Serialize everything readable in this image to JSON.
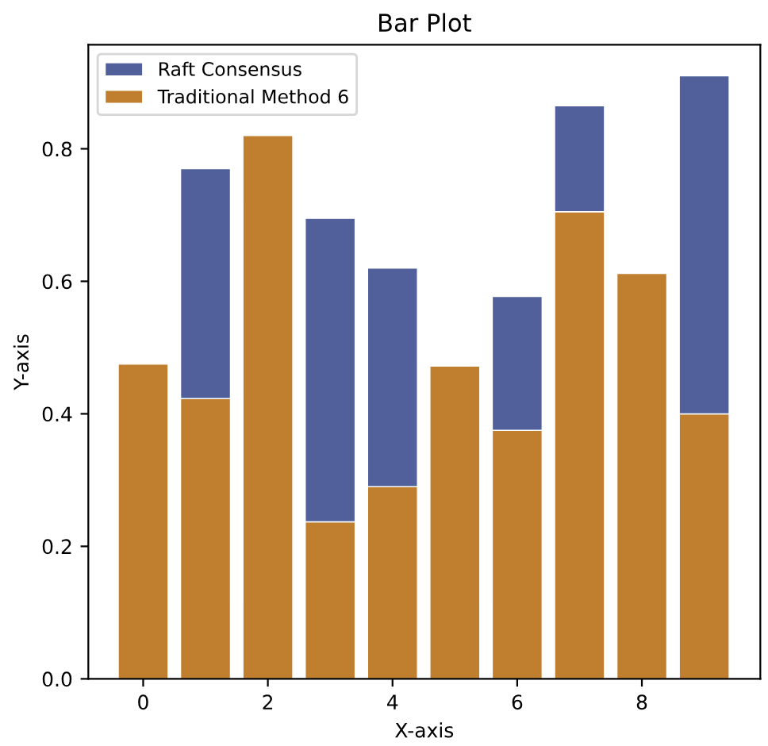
{
  "chart_data": {
    "type": "bar",
    "title": "Bar Plot",
    "xlabel": "X-axis",
    "ylabel": "Y-axis",
    "stacked": true,
    "x": [
      0,
      1,
      2,
      3,
      4,
      5,
      6,
      7,
      8,
      9
    ],
    "series": [
      {
        "name": "Traditional Method 6",
        "color": "#c07e2f",
        "values": [
          0.475,
          0.423,
          0.82,
          0.237,
          0.29,
          0.472,
          0.375,
          0.705,
          0.612,
          0.4
        ]
      },
      {
        "name": "Raft Consensus",
        "color": "#51609b",
        "values": [
          null,
          0.347,
          null,
          0.458,
          0.33,
          null,
          0.202,
          0.16,
          null,
          0.51
        ]
      }
    ],
    "xlim": [
      -0.88,
      9.9
    ],
    "ylim": [
      0,
      0.957
    ],
    "xticks": [
      0,
      2,
      4,
      6,
      8
    ],
    "yticks": [
      {
        "value": 0,
        "label": "0.0"
      },
      0.2,
      0.4,
      0.6,
      0.8
    ],
    "legend": "top left"
  }
}
